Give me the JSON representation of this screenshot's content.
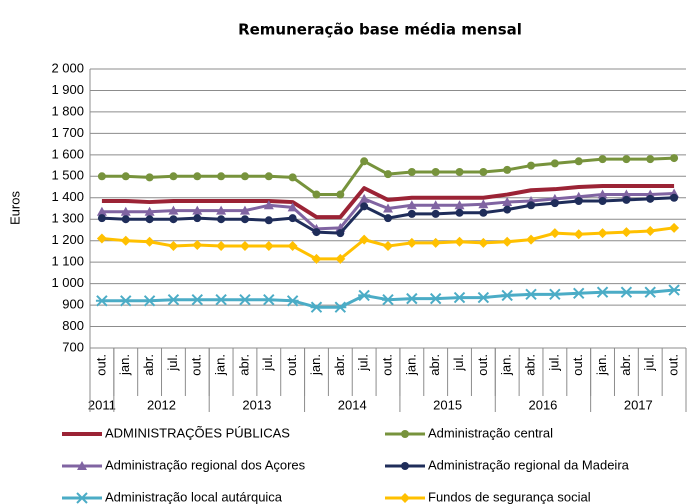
{
  "chart_data": {
    "type": "line",
    "title": "Remuneração base média mensal",
    "y_label": "Euros",
    "groups": [
      {
        "label": "2011",
        "categories": [
          "out."
        ]
      },
      {
        "label": "2012",
        "categories": [
          "jan.",
          "abr.",
          "jul.",
          "out."
        ]
      },
      {
        "label": "2013",
        "categories": [
          "jan.",
          "abr.",
          "jul.",
          "out."
        ]
      },
      {
        "label": "2014",
        "categories": [
          "jan.",
          "abr.",
          "jul.",
          "out."
        ]
      },
      {
        "label": "2015",
        "categories": [
          "jan.",
          "abr.",
          "jul.",
          "out."
        ]
      },
      {
        "label": "2016",
        "categories": [
          "jan.",
          "abr.",
          "jul.",
          "out."
        ]
      },
      {
        "label": "2017",
        "categories": [
          "jan.",
          "abr.",
          "jul.",
          "out."
        ]
      }
    ],
    "ylim": [
      700,
      2000
    ],
    "yticks": [
      700,
      800,
      900,
      {
        "value": 1000,
        "label": "1 000"
      },
      {
        "value": 1100,
        "label": "1 100"
      },
      {
        "value": 1200,
        "label": "1 200"
      },
      {
        "value": 1300,
        "label": "1 300"
      },
      {
        "value": 1400,
        "label": "1 400"
      },
      {
        "value": 1500,
        "label": "1 500"
      },
      {
        "value": 1600,
        "label": "1 600"
      },
      {
        "value": 1700,
        "label": "1 700"
      },
      {
        "value": 1800,
        "label": "1 800"
      },
      {
        "value": 1900,
        "label": "1 900"
      },
      {
        "value": 2000,
        "label": "2 000"
      }
    ],
    "grid": true,
    "legend": "bottom",
    "series": [
      {
        "name": "ADMINISTRAÇÕES PÚBLICAS",
        "color": "#9b2335",
        "marker": "none",
        "values": [
          1385,
          1385,
          1380,
          1385,
          1385,
          1385,
          1385,
          1385,
          1380,
          1310,
          1310,
          1445,
          1390,
          1400,
          1400,
          1400,
          1400,
          1415,
          1435,
          1440,
          1450,
          1455,
          1455,
          1455,
          1455
        ]
      },
      {
        "name": "Administração central",
        "color": "#77933c",
        "marker": "circle",
        "values": [
          1500,
          1500,
          1495,
          1500,
          1500,
          1500,
          1500,
          1500,
          1495,
          1415,
          1415,
          1570,
          1510,
          1520,
          1520,
          1520,
          1520,
          1530,
          1550,
          1560,
          1570,
          1580,
          1580,
          1580,
          1585
        ]
      },
      {
        "name": "Administração regional dos Açores",
        "color": "#8064a2",
        "marker": "triangle",
        "values": [
          1335,
          1335,
          1335,
          1340,
          1340,
          1340,
          1340,
          1365,
          1355,
          1255,
          1260,
          1395,
          1350,
          1365,
          1365,
          1365,
          1370,
          1380,
          1385,
          1395,
          1405,
          1415,
          1415,
          1415,
          1420
        ]
      },
      {
        "name": "Administração regional da Madeira",
        "color": "#1f2d5a",
        "marker": "circle",
        "values": [
          1305,
          1300,
          1300,
          1300,
          1305,
          1300,
          1300,
          1295,
          1305,
          1240,
          1235,
          1360,
          1305,
          1325,
          1325,
          1330,
          1330,
          1345,
          1365,
          1375,
          1385,
          1385,
          1390,
          1395,
          1400
        ]
      },
      {
        "name": "Administração local autárquica",
        "color": "#4bacc6",
        "marker": "star",
        "values": [
          920,
          920,
          920,
          925,
          925,
          925,
          925,
          925,
          920,
          890,
          890,
          945,
          925,
          930,
          930,
          935,
          935,
          945,
          950,
          950,
          955,
          960,
          960,
          960,
          970
        ]
      },
      {
        "name": "Fundos de segurança social",
        "color": "#ffc000",
        "marker": "diamond",
        "values": [
          1210,
          1200,
          1195,
          1175,
          1180,
          1175,
          1175,
          1175,
          1175,
          1115,
          1115,
          1205,
          1175,
          1190,
          1190,
          1195,
          1190,
          1195,
          1205,
          1235,
          1230,
          1235,
          1240,
          1245,
          1260
        ]
      }
    ]
  }
}
